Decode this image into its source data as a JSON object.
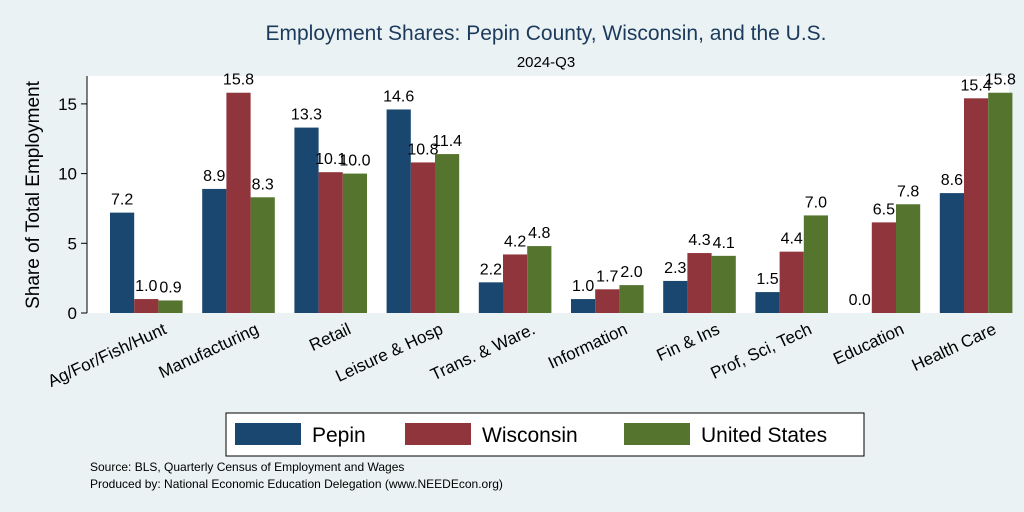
{
  "chart_data": {
    "type": "bar",
    "title": "Employment Shares: Pepin County, Wisconsin, and the U.S.",
    "subtitle": "2024-Q3",
    "xlabel": "",
    "ylabel": "Share of Total Employment",
    "ylim": [
      0,
      17
    ],
    "yticks": [
      0,
      5,
      10,
      15
    ],
    "categories": [
      "Ag/For/Fish/Hunt",
      "Manufacturing",
      "Retail",
      "Leisure & Hosp",
      "Trans. & Ware.",
      "Information",
      "Fin & Ins",
      "Prof, Sci, Tech",
      "Education",
      "Health Care"
    ],
    "series": [
      {
        "name": "Pepin",
        "color": "#1a476f",
        "values": [
          7.2,
          8.9,
          13.3,
          14.6,
          2.2,
          1.0,
          2.3,
          1.5,
          0.0,
          8.6
        ]
      },
      {
        "name": "Wisconsin",
        "color": "#90353b",
        "values": [
          1.0,
          15.8,
          10.1,
          10.8,
          4.2,
          1.7,
          4.3,
          4.4,
          6.5,
          15.4
        ]
      },
      {
        "name": "United States",
        "color": "#55752f",
        "values": [
          0.9,
          8.3,
          10.0,
          11.4,
          4.8,
          2.0,
          4.1,
          7.0,
          7.8,
          15.8
        ]
      }
    ],
    "grid": false,
    "legend_position": "bottom"
  },
  "notes": {
    "source": "Source: BLS, Quarterly Census of Employment and Wages",
    "produced": "Produced by: National Economic Education Delegation (www.NEEDEcon.org)"
  }
}
